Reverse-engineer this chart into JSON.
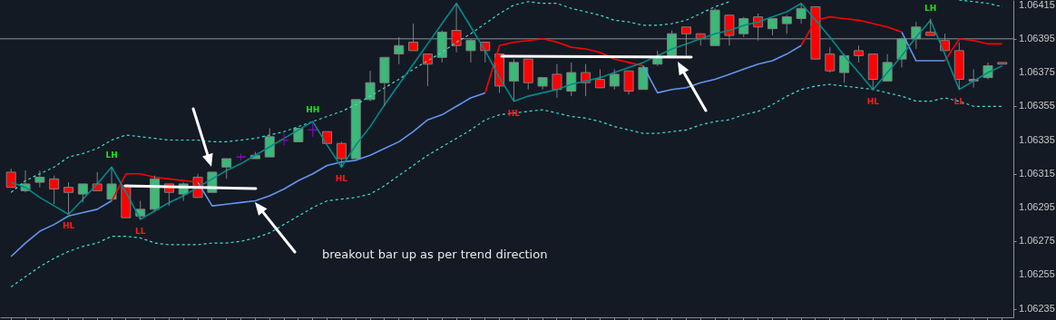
{
  "chart_data": {
    "type": "candlestick",
    "categories": [
      null,
      null,
      null,
      null,
      null,
      null,
      null,
      null,
      null,
      null,
      null,
      null,
      null,
      null,
      null,
      null,
      null,
      null,
      null,
      null,
      null,
      null,
      null,
      null,
      null,
      null,
      null,
      null,
      null,
      null,
      null,
      null,
      null,
      null,
      null,
      null,
      null,
      null,
      null,
      null,
      null,
      null,
      null,
      null,
      null,
      null,
      null,
      null,
      null,
      null,
      null,
      null,
      null,
      null,
      null,
      null,
      null,
      null,
      null,
      null,
      null,
      null,
      null,
      null,
      null,
      null,
      null,
      null,
      null,
      null
    ],
    "ohlc": [
      [
        1.06316,
        1.06318,
        1.06307,
        1.06307
      ],
      [
        1.06305,
        1.06317,
        1.06304,
        1.06309
      ],
      [
        1.0631,
        1.06317,
        1.06307,
        1.06313
      ],
      [
        1.06312,
        1.06314,
        1.06297,
        1.06306
      ],
      [
        1.06307,
        1.0631,
        1.06291,
        1.06304
      ],
      [
        1.06303,
        1.06309,
        1.06298,
        1.06309
      ],
      [
        1.06309,
        1.06316,
        1.06305,
        1.06305
      ],
      [
        1.063,
        1.06319,
        1.06299,
        1.06309
      ],
      [
        1.06308,
        1.06308,
        1.06289,
        1.06289
      ],
      [
        1.0629,
        1.06299,
        1.06288,
        1.06294
      ],
      [
        1.06294,
        1.06314,
        1.06293,
        1.06312
      ],
      [
        1.06309,
        1.06309,
        1.06296,
        1.06304
      ],
      [
        1.06303,
        1.0631,
        1.06299,
        1.06309
      ],
      [
        1.06313,
        1.06315,
        1.06301,
        1.06301
      ],
      [
        1.06304,
        1.06316,
        1.06304,
        1.06316
      ],
      [
        1.06319,
        1.06324,
        1.06312,
        1.06324
      ],
      [
        1.06325,
        1.06327,
        1.06323,
        1.06325
      ],
      [
        1.06324,
        1.06328,
        1.06324,
        1.06326
      ],
      [
        1.06325,
        1.06342,
        1.06325,
        1.06337
      ],
      [
        1.06335,
        1.06339,
        1.06332,
        1.06335
      ],
      [
        1.06334,
        1.06342,
        1.06334,
        1.06342
      ],
      [
        1.06341,
        1.06345,
        1.06337,
        1.06341
      ],
      [
        1.0634,
        1.0634,
        1.06333,
        1.06333
      ],
      [
        1.06333,
        1.06334,
        1.06319,
        1.06324
      ],
      [
        1.06324,
        1.06359,
        1.06324,
        1.06359
      ],
      [
        1.06359,
        1.06376,
        1.06358,
        1.06369
      ],
      [
        1.06369,
        1.06384,
        1.06355,
        1.06384
      ],
      [
        1.06386,
        1.06396,
        1.0638,
        1.06391
      ],
      [
        1.06393,
        1.06404,
        1.06388,
        1.06388
      ],
      [
        1.06386,
        1.06386,
        1.06367,
        1.0638
      ],
      [
        1.06384,
        1.064,
        1.06381,
        1.06399
      ],
      [
        1.064,
        1.06416,
        1.06387,
        1.06391
      ],
      [
        1.06388,
        1.06395,
        1.06381,
        1.06394
      ],
      [
        1.06393,
        1.06393,
        1.06381,
        1.06388
      ],
      [
        1.06386,
        1.06386,
        1.06363,
        1.06367
      ],
      [
        1.0637,
        1.06383,
        1.06358,
        1.06381
      ],
      [
        1.06383,
        1.06383,
        1.06365,
        1.06369
      ],
      [
        1.06367,
        1.06372,
        1.06365,
        1.06372
      ],
      [
        1.06374,
        1.0638,
        1.0636,
        1.06365
      ],
      [
        1.06364,
        1.06381,
        1.06361,
        1.06375
      ],
      [
        1.06375,
        1.0638,
        1.06361,
        1.06369
      ],
      [
        1.06371,
        1.06377,
        1.06366,
        1.06366
      ],
      [
        1.06367,
        1.06377,
        1.06365,
        1.06374
      ],
      [
        1.06376,
        1.06376,
        1.06362,
        1.06364
      ],
      [
        1.06365,
        1.06379,
        1.06365,
        1.06378
      ],
      [
        1.0638,
        1.06388,
        1.06379,
        1.06384
      ],
      [
        1.06385,
        1.064,
        1.06385,
        1.06398
      ],
      [
        1.06402,
        1.06402,
        1.06385,
        1.06398
      ],
      [
        1.06398,
        1.06398,
        1.06391,
        1.06395
      ],
      [
        1.06391,
        1.06413,
        1.06391,
        1.06412
      ],
      [
        1.06409,
        1.06409,
        1.06391,
        1.06397
      ],
      [
        1.06398,
        1.06408,
        1.06396,
        1.06407
      ],
      [
        1.06408,
        1.0641,
        1.06394,
        1.06402
      ],
      [
        1.06401,
        1.06407,
        1.06397,
        1.06407
      ],
      [
        1.06404,
        1.06409,
        1.06398,
        1.06408
      ],
      [
        1.06407,
        1.06416,
        1.06404,
        1.06413
      ],
      [
        1.06414,
        1.06414,
        1.06383,
        1.06383
      ],
      [
        1.06386,
        1.0639,
        1.06375,
        1.06376
      ],
      [
        1.06375,
        1.06386,
        1.06369,
        1.06385
      ],
      [
        1.06388,
        1.06391,
        1.06381,
        1.06385
      ],
      [
        1.06386,
        1.06386,
        1.06365,
        1.06371
      ],
      [
        1.0637,
        1.06386,
        1.0637,
        1.06381
      ],
      [
        1.06383,
        1.06396,
        1.06378,
        1.06395
      ],
      [
        1.06395,
        1.06405,
        1.06389,
        1.06402
      ],
      [
        1.06399,
        1.06407,
        1.06397,
        1.06397
      ],
      [
        1.06394,
        1.06398,
        1.06388,
        1.06388
      ],
      [
        1.06388,
        1.06393,
        1.06365,
        1.06371
      ],
      [
        1.0637,
        1.06377,
        1.06366,
        1.06371
      ],
      [
        1.06372,
        1.06381,
        1.06371,
        1.06379
      ],
      [
        1.06381,
        1.06381,
        1.0638,
        1.0638
      ]
    ],
    "colors": [
      "#ff0000",
      "#3cb878",
      "#3cb878",
      "#ff0000",
      "#ff0000",
      "#3cb878",
      "#ff0000",
      "#3cb878",
      "#ff0000",
      "#3cb878",
      "#3cb878",
      "#ff0000",
      "#3cb878",
      "#ff0000",
      "#3cb878",
      "#3cb878",
      "#9900cc",
      "#3cb878",
      "#3cb878",
      "#9900cc",
      "#3cb878",
      "#9900cc",
      "#ff0000",
      "#ff0000",
      "#3cb878",
      "#3cb878",
      "#3cb878",
      "#3cb878",
      "#ff0000",
      "#ff0000",
      "#3cb878",
      "#ff0000",
      "#3cb878",
      "#ff0000",
      "#ff0000",
      "#3cb878",
      "#ff0000",
      "#3cb878",
      "#ff0000",
      "#3cb878",
      "#ff0000",
      "#ff0000",
      "#3cb878",
      "#ff0000",
      "#3cb878",
      "#3cb878",
      "#3cb878",
      "#ff0000",
      "#ff0000",
      "#3cb878",
      "#ff0000",
      "#3cb878",
      "#ff0000",
      "#3cb878",
      "#3cb878",
      "#3cb878",
      "#ff0000",
      "#ff0000",
      "#3cb878",
      "#ff0000",
      "#ff0000",
      "#3cb878",
      "#3cb878",
      "#3cb878",
      "#ff0000",
      "#ff0000",
      "#ff0000",
      "#808080",
      "#3cb878",
      "#ff0000"
    ],
    "series": [
      {
        "type": "line",
        "color": "#40e0d0",
        "line_style": "dashed",
        "values": [
          1.06304,
          1.06311,
          1.06315,
          1.06319,
          1.06325,
          1.06327,
          1.0633,
          1.06335,
          1.06338,
          1.06337,
          1.06336,
          1.06335,
          1.06335,
          1.06335,
          1.06334,
          1.06334,
          1.06335,
          1.06336,
          1.06338,
          1.0634,
          1.06343,
          1.06346,
          1.06349,
          1.06352,
          1.06356,
          1.06361,
          1.06366,
          1.06371,
          1.06377,
          1.06382,
          1.06387,
          1.06393,
          1.06398,
          1.06404,
          1.0641,
          1.06415,
          1.06417,
          1.06416,
          1.06416,
          1.06413,
          1.06411,
          1.06409,
          1.06406,
          1.06405,
          1.06403,
          1.06403,
          1.06404,
          1.06406,
          1.0641,
          1.06414,
          1.06417,
          null,
          null,
          null,
          null,
          null,
          null,
          null,
          null,
          null,
          null,
          null,
          null,
          null,
          null,
          null,
          1.06418,
          1.06417,
          1.06416,
          1.06414
        ]
      },
      {
        "type": "line",
        "color": "#40e0d0",
        "line_style": "dashed",
        "values": [
          1.06248,
          1.06254,
          1.0626,
          1.06265,
          1.06269,
          1.06272,
          1.06274,
          1.06278,
          1.06278,
          1.06277,
          1.06274,
          1.06273,
          1.06273,
          1.06273,
          1.06274,
          1.06274,
          1.06275,
          1.06277,
          1.0628,
          1.06285,
          1.0629,
          1.06295,
          1.06299,
          1.063,
          1.06301,
          1.06303,
          1.06308,
          1.06314,
          1.0632,
          1.06326,
          1.06331,
          1.06336,
          1.06341,
          1.06347,
          1.0635,
          1.06351,
          1.06352,
          1.06353,
          1.06351,
          1.06349,
          1.06348,
          1.06346,
          1.06343,
          1.06341,
          1.06339,
          1.06339,
          1.0634,
          1.06341,
          1.06344,
          1.06346,
          1.06347,
          1.0635,
          1.06352,
          1.06356,
          1.06361,
          1.06365,
          1.06367,
          1.06368,
          1.06367,
          1.06366,
          1.06365,
          1.06363,
          1.06361,
          1.06358,
          1.06358,
          1.0636,
          1.06358,
          1.06355,
          1.06355,
          1.06355
        ]
      },
      {
        "type": "line",
        "color": "#6495ed",
        "values": [
          1.06266,
          1.06274,
          1.06281,
          1.06285,
          1.0629,
          1.06292,
          1.06294,
          1.06299,
          null,
          null,
          null,
          null,
          null,
          1.0631,
          1.06296,
          1.06297,
          1.06298,
          1.06299,
          1.06302,
          1.06306,
          1.06311,
          1.06315,
          1.0632,
          1.06322,
          1.06323,
          1.06326,
          1.0633,
          1.06334,
          1.0634,
          1.06347,
          1.0635,
          1.06355,
          1.0636,
          1.06363,
          null,
          null,
          null,
          null,
          null,
          null,
          null,
          null,
          null,
          null,
          1.06379,
          1.06363,
          1.06365,
          1.06366,
          1.06369,
          1.06371,
          1.06374,
          1.06377,
          1.0638,
          1.06382,
          1.06386,
          1.06391,
          null,
          null,
          null,
          null,
          null,
          null,
          1.06399,
          1.06382,
          1.06382,
          1.06382,
          null,
          null,
          null,
          null
        ]
      },
      {
        "type": "line",
        "color": "#ff0000",
        "values": [
          null,
          null,
          null,
          null,
          null,
          null,
          null,
          1.06299,
          1.06315,
          1.06315,
          1.06313,
          1.06312,
          1.06311,
          1.0631,
          null,
          null,
          null,
          null,
          null,
          null,
          null,
          null,
          null,
          null,
          null,
          null,
          null,
          null,
          null,
          null,
          null,
          null,
          null,
          1.06363,
          1.06391,
          1.06393,
          1.06394,
          1.06395,
          1.06393,
          1.0639,
          1.06389,
          1.06387,
          1.06383,
          1.06381,
          1.06379,
          null,
          null,
          null,
          null,
          null,
          null,
          null,
          null,
          null,
          null,
          1.06391,
          1.06406,
          1.06408,
          1.06407,
          1.06406,
          1.06404,
          1.06402,
          1.06399,
          null,
          null,
          1.06382,
          1.06395,
          1.06394,
          1.06392,
          1.06392
        ]
      },
      {
        "type": "line",
        "color": "#008b8b",
        "values": [
          1.0631,
          1.06307,
          1.06301,
          1.06296,
          1.06291,
          1.063,
          1.06309,
          1.06319,
          1.06304,
          1.06288,
          1.06293,
          1.06298,
          1.06302,
          1.06307,
          1.06312,
          1.06317,
          1.06321,
          1.06326,
          1.06331,
          1.06336,
          1.06341,
          1.06346,
          1.06332,
          1.06319,
          1.06332,
          1.06343,
          1.06356,
          1.06368,
          1.0638,
          1.06392,
          1.06404,
          1.06416,
          1.06402,
          1.06388,
          1.06372,
          1.06358,
          1.06361,
          1.06363,
          1.06365,
          1.06368,
          1.0637,
          1.06372,
          1.06375,
          1.06378,
          1.06381,
          1.06385,
          1.06389,
          1.06392,
          1.06395,
          1.06398,
          1.064,
          1.06403,
          1.06405,
          1.06408,
          1.06411,
          1.06416,
          1.06406,
          1.06396,
          1.06385,
          1.06375,
          1.06365,
          1.06375,
          1.06385,
          1.06396,
          1.06406,
          1.06386,
          1.06365,
          1.0637,
          1.06375,
          1.06379
        ],
        "value_labels": [
          null,
          null,
          null,
          null,
          "HL",
          null,
          null,
          "LH",
          null,
          "LL",
          null,
          null,
          null,
          null,
          null,
          null,
          null,
          null,
          null,
          null,
          null,
          "HH",
          null,
          "HL",
          null,
          null,
          null,
          null,
          null,
          null,
          null,
          null,
          null,
          null,
          null,
          "HL",
          null,
          null,
          null,
          null,
          null,
          null,
          null,
          null,
          null,
          null,
          null,
          null,
          null,
          null,
          null,
          null,
          null,
          null,
          null,
          null,
          null,
          null,
          null,
          null,
          "HL",
          null,
          null,
          null,
          "LH",
          null,
          "LL",
          null,
          null,
          null
        ]
      }
    ],
    "ylim": [
      1.0623,
      1.06418
    ],
    "yticks": [
      1.06235,
      1.06255,
      1.06275,
      1.06295,
      1.06315,
      1.06335,
      1.06355,
      1.06375,
      1.06395,
      1.06415
    ],
    "ref_lines": [
      {
        "axis": "y",
        "value": 1.06395,
        "color": "#8a9199"
      }
    ],
    "tick_labels": "y",
    "annotations": [
      "breakout bar up as per trend direction"
    ]
  }
}
